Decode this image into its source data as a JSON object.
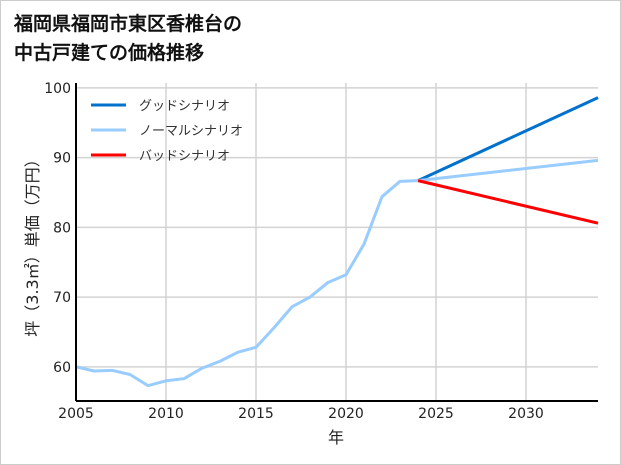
{
  "chart_data": {
    "type": "line",
    "title_lines": [
      "福岡県福岡市東区香椎台の",
      "中古戸建ての価格推移"
    ],
    "xlabel": "年",
    "ylabel": "坪（3.3㎡）単価（万円）",
    "xlim": [
      2005,
      2034
    ],
    "ylim": [
      55.1,
      100.7
    ],
    "xticks": [
      2005,
      2010,
      2015,
      2020,
      2025,
      2030
    ],
    "yticks": [
      60,
      70,
      80,
      90,
      100
    ],
    "grid": true,
    "legend_position": "top-left",
    "history": {
      "x": [
        2005,
        2006,
        2007,
        2008,
        2009,
        2010,
        2011,
        2012,
        2013,
        2014,
        2015,
        2016,
        2017,
        2018,
        2019,
        2020,
        2021,
        2022,
        2023,
        2024
      ],
      "y": [
        60.0,
        59.4,
        59.5,
        58.9,
        57.3,
        58.0,
        58.3,
        59.8,
        60.8,
        62.1,
        62.8,
        65.6,
        68.6,
        70.0,
        72.1,
        73.2,
        77.6,
        84.4,
        86.6,
        86.7
      ]
    },
    "series": [
      {
        "name": "グッドシナリオ",
        "color": "#0072CE",
        "x": [
          2024,
          2034
        ],
        "y": [
          86.7,
          98.6
        ]
      },
      {
        "name": "ノーマルシナリオ",
        "color": "#99CCFF",
        "x": [
          2024,
          2034
        ],
        "y": [
          86.7,
          89.6
        ]
      },
      {
        "name": "バッドシナリオ",
        "color": "#FF0000",
        "x": [
          2024,
          2034
        ],
        "y": [
          86.7,
          80.6
        ]
      }
    ]
  }
}
